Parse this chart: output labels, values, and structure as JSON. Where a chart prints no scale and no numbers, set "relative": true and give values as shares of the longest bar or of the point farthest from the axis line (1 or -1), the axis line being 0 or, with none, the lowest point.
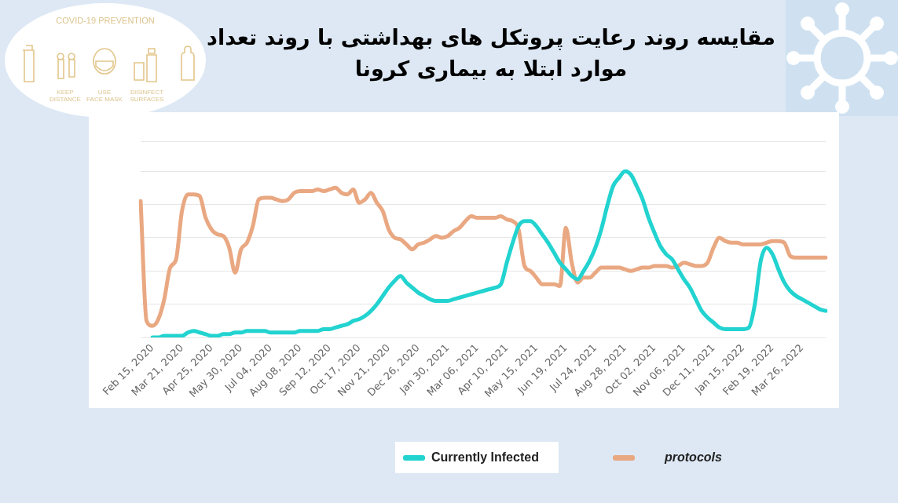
{
  "chart_data": {
    "type": "line",
    "title": "مقایسه روند رعایت پروتکل های بهداشتی با روند تعداد موارد ابتلا به بیماری کرونا",
    "annotations": [
      "COVID-19 PREVENTION",
      "KEEP DISTANCE",
      "USE FACE MASK",
      "DISINFECT SURFACES"
    ],
    "relative": true,
    "grid": "y",
    "legend": "bottom",
    "marker": "none",
    "line_style": "solid",
    "categories": [
      null,
      null,
      "Feb 15, 2020",
      null,
      null,
      null,
      null,
      "Mar 21, 2020",
      null,
      null,
      null,
      null,
      "Apr 25, 2020",
      null,
      null,
      null,
      null,
      "May 30, 2020",
      null,
      null,
      null,
      null,
      "Jul 04, 2020",
      null,
      null,
      null,
      null,
      "Aug 08, 2020",
      null,
      null,
      null,
      null,
      "Sep 12, 2020",
      null,
      null,
      null,
      null,
      "Oct 17, 2020",
      null,
      null,
      null,
      null,
      "Nov 21, 2020",
      null,
      null,
      null,
      null,
      "Dec 26, 2020",
      null,
      null,
      null,
      null,
      "Jan 30, 2021",
      null,
      null,
      null,
      null,
      "Mar 06, 2021",
      null,
      null,
      null,
      null,
      "Apr 10, 2021",
      null,
      null,
      null,
      null,
      "May 15, 2021",
      null,
      null,
      null,
      null,
      "Jun 19, 2021",
      null,
      null,
      null,
      null,
      "Jul 24, 2021",
      null,
      null,
      null,
      null,
      "Aug 28, 2021",
      null,
      null,
      null,
      null,
      "Oct 02, 2021",
      null,
      null,
      null,
      null,
      "Nov 06, 2021",
      null,
      null,
      null,
      null,
      "Dec 11, 2021",
      null,
      null,
      null,
      null,
      "Jan 15, 2022",
      null,
      null,
      null,
      null,
      "Feb 19, 2022",
      null,
      null,
      null,
      null,
      "Mar 26, 2022",
      null,
      null,
      null,
      null
    ],
    "series": [
      {
        "name": "Currently Infected",
        "color": "#22d3d0",
        "values": [
          null,
          null,
          0.0,
          0.0,
          0.01,
          0.01,
          0.01,
          0.01,
          0.03,
          0.04,
          0.03,
          0.02,
          0.01,
          0.01,
          0.02,
          0.02,
          0.03,
          0.03,
          0.04,
          0.04,
          0.04,
          0.04,
          0.03,
          0.03,
          0.03,
          0.03,
          0.03,
          0.04,
          0.04,
          0.04,
          0.04,
          0.05,
          0.05,
          0.06,
          0.07,
          0.08,
          0.1,
          0.11,
          0.13,
          0.16,
          0.2,
          0.25,
          0.3,
          0.34,
          0.37,
          0.33,
          0.3,
          0.27,
          0.25,
          0.23,
          0.22,
          0.22,
          0.22,
          0.23,
          0.24,
          0.25,
          0.26,
          0.27,
          0.28,
          0.29,
          0.3,
          0.32,
          0.45,
          0.57,
          0.67,
          0.7,
          0.7,
          0.67,
          0.62,
          0.57,
          0.51,
          0.45,
          0.41,
          0.37,
          0.35,
          0.4,
          0.46,
          0.54,
          0.65,
          0.79,
          0.91,
          0.96,
          1.0,
          0.98,
          0.91,
          0.83,
          0.72,
          0.63,
          0.55,
          0.5,
          0.47,
          0.41,
          0.35,
          0.3,
          0.23,
          0.16,
          0.12,
          0.09,
          0.06,
          0.05,
          0.05,
          0.05,
          0.05,
          0.06,
          0.2,
          0.46,
          0.54,
          0.5,
          0.41,
          0.33,
          0.28,
          0.25,
          0.23,
          0.21,
          0.19,
          0.17,
          0.16
        ]
      },
      {
        "name": "protocols",
        "color": "#e9a882",
        "values": [
          0.82,
          0.1,
          0.07,
          0.11,
          0.23,
          0.42,
          0.47,
          0.76,
          0.86,
          0.86,
          0.85,
          0.72,
          0.65,
          0.62,
          0.61,
          0.54,
          0.39,
          0.53,
          0.57,
          0.67,
          0.83,
          0.84,
          0.84,
          0.83,
          0.82,
          0.83,
          0.87,
          0.88,
          0.88,
          0.88,
          0.89,
          0.88,
          0.89,
          0.9,
          0.87,
          0.86,
          0.89,
          0.81,
          0.83,
          0.87,
          0.81,
          0.76,
          0.65,
          0.6,
          0.59,
          0.56,
          0.53,
          0.56,
          0.57,
          0.59,
          0.61,
          0.6,
          0.61,
          0.64,
          0.66,
          0.7,
          0.73,
          0.72,
          0.72,
          0.72,
          0.72,
          0.73,
          0.71,
          0.7,
          0.65,
          0.43,
          0.4,
          0.36,
          0.32,
          0.32,
          0.32,
          0.31,
          0.66,
          0.45,
          0.33,
          0.36,
          0.36,
          0.39,
          0.42,
          0.42,
          0.42,
          0.42,
          0.41,
          0.4,
          0.41,
          0.42,
          0.42,
          0.43,
          0.43,
          0.43,
          0.42,
          0.43,
          0.45,
          0.44,
          0.43,
          0.43,
          0.45,
          0.54,
          0.6,
          0.58,
          0.57,
          0.57,
          0.56,
          0.56,
          0.56,
          0.56,
          0.57,
          0.58,
          0.58,
          0.57,
          0.49,
          0.48,
          0.48,
          0.48,
          0.48,
          0.48,
          0.48
        ]
      }
    ]
  }
}
